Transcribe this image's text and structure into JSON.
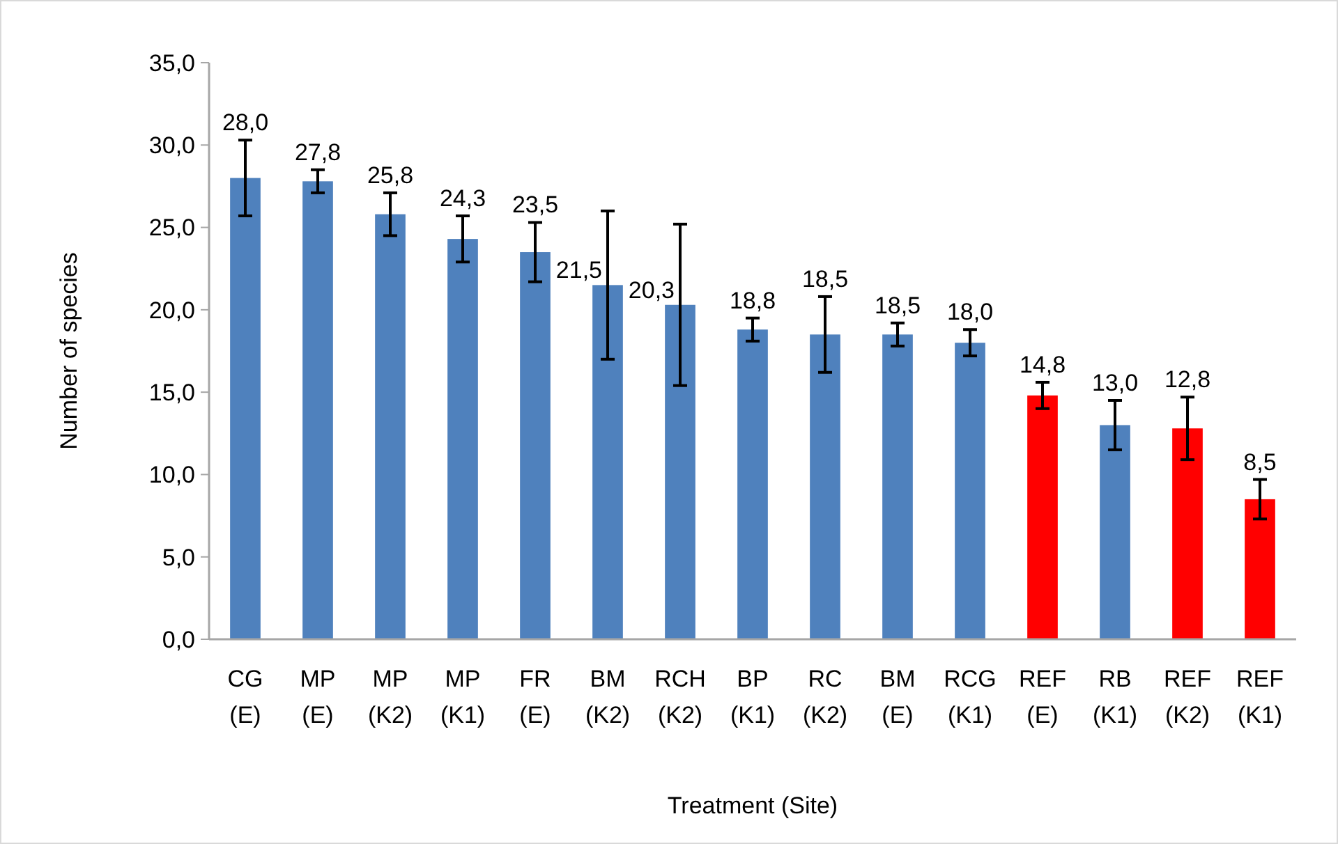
{
  "chart_data": {
    "type": "bar",
    "xlabel": "Treatment (Site)",
    "ylabel": "Number of species",
    "categories": [
      "CG\n(E)",
      "MP\n(E)",
      "MP\n(K2)",
      "MP\n(K1)",
      "FR\n(E)",
      "BM\n(K2)",
      "RCH\n(K2)",
      "BP\n(K1)",
      "RC\n(K2)",
      "BM\n(E)",
      "RCG\n(K1)",
      "REF\n(E)",
      "RB\n(K1)",
      "REF\n(K2)",
      "REF\n(K1)"
    ],
    "values": [
      28.0,
      27.8,
      25.8,
      24.3,
      23.5,
      21.5,
      20.3,
      18.8,
      18.5,
      18.5,
      18.0,
      14.8,
      13.0,
      12.8,
      8.5
    ],
    "colors": [
      "#4f81bd",
      "#4f81bd",
      "#4f81bd",
      "#4f81bd",
      "#4f81bd",
      "#4f81bd",
      "#4f81bd",
      "#4f81bd",
      "#4f81bd",
      "#4f81bd",
      "#4f81bd",
      "#ff0000",
      "#4f81bd",
      "#ff0000",
      "#ff0000"
    ],
    "errors": [
      2.3,
      0.7,
      1.3,
      1.4,
      1.8,
      4.5,
      4.9,
      0.7,
      2.3,
      0.7,
      0.8,
      0.8,
      1.5,
      1.9,
      1.2
    ],
    "value_labels": [
      "28,0",
      "27,8",
      "25,8",
      "24,3",
      "23,5",
      "21,5",
      "20,3",
      "18,8",
      "18,5",
      "18,5",
      "18,0",
      "14,8",
      "13,0",
      "12,8",
      "8,5"
    ],
    "ylim": [
      0,
      35
    ],
    "yticks": [
      {
        "value": 0,
        "label": "0,0"
      },
      {
        "value": 5,
        "label": "5,0"
      },
      {
        "value": 10,
        "label": "10,0"
      },
      {
        "value": 15,
        "label": "15,0"
      },
      {
        "value": 20,
        "label": "20,0"
      },
      {
        "value": 25,
        "label": "25,0"
      },
      {
        "value": 30,
        "label": "30,0"
      },
      {
        "value": 35,
        "label": "35,0"
      }
    ],
    "grid": false
  }
}
